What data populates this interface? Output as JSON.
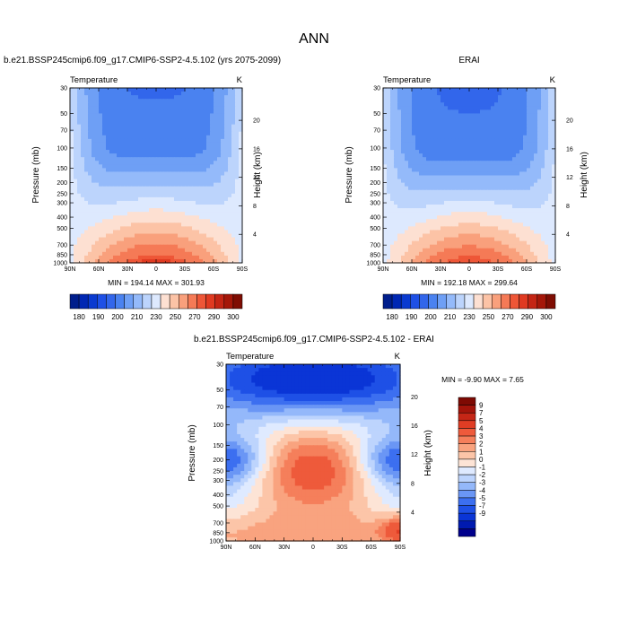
{
  "figure": {
    "title": "ANN"
  },
  "colors": {
    "model_and_obs_levels": [
      "#001e8c",
      "#0027b3",
      "#0a3ad0",
      "#1e50e6",
      "#3266eb",
      "#4a82f0",
      "#6e9ff5",
      "#94bafa",
      "#bcd4fc",
      "#dde9fe",
      "#fde0d2",
      "#fcc3a6",
      "#f9a07c",
      "#f57a56",
      "#ee5637",
      "#e03a21",
      "#c42514",
      "#a51709",
      "#7f0d03"
    ],
    "difference_levels": [
      "#00008c",
      "#001ab0",
      "#0a35d6",
      "#1e50e6",
      "#3c6ff0",
      "#6a96f5",
      "#94b8fa",
      "#bdd4fd",
      "#dfeaff",
      "#fde4d6",
      "#fcc5a8",
      "#f9a37f",
      "#f57f5b",
      "#ee5a3b",
      "#e03d24",
      "#c52616",
      "#a3140a",
      "#7e0a03"
    ]
  },
  "chart_data": [
    {
      "type": "heatmap",
      "id": "model",
      "subtitle": "b.e21.BSSP245cmip6.f09_g17.CMIP6-SSP2-4.5.102 (yrs 2075-2099)",
      "left_label": "Temperature",
      "right_label": "K",
      "xlabel": "",
      "ylabel": "Pressure (mb)",
      "y2label": "Height (km)",
      "x_ticks": [
        "90N",
        "60N",
        "30N",
        "0",
        "30S",
        "60S",
        "90S"
      ],
      "x_tick_values": [
        90,
        60,
        30,
        0,
        -30,
        -60,
        -90
      ],
      "y_ticks": [
        "30",
        "50",
        "70",
        "100",
        "150",
        "200",
        "250",
        "300",
        "400",
        "500",
        "700",
        "850",
        "1000"
      ],
      "y_tick_values": [
        30,
        50,
        70,
        100,
        150,
        200,
        250,
        300,
        400,
        500,
        700,
        850,
        1000
      ],
      "y2_ticks": [
        "20",
        "16",
        "12",
        "8",
        "4"
      ],
      "y2_tick_values": [
        20,
        16,
        12,
        8,
        4
      ],
      "ylim": [
        1000,
        30
      ],
      "stats_text": "MIN = 194.14   MAX = 301.93",
      "min": 194.14,
      "max": 301.93,
      "colorbar": {
        "levels": [
          175,
          180,
          185,
          190,
          200,
          210,
          220,
          230,
          240,
          250,
          260,
          270,
          280,
          290,
          295,
          300,
          305
        ],
        "labels": [
          "180",
          "190",
          "200",
          "210",
          "230",
          "250",
          "270",
          "290",
          "300"
        ]
      }
    },
    {
      "type": "heatmap",
      "id": "obs",
      "subtitle": "ERAI",
      "left_label": "Temperature",
      "right_label": "K",
      "ylabel": "Pressure (mb)",
      "y2label": "Height (km)",
      "x_ticks": [
        "90N",
        "60N",
        "30N",
        "0",
        "30S",
        "60S",
        "90S"
      ],
      "x_tick_values": [
        90,
        60,
        30,
        0,
        -30,
        -60,
        -90
      ],
      "y_ticks": [
        "30",
        "50",
        "70",
        "100",
        "150",
        "200",
        "250",
        "300",
        "400",
        "500",
        "700",
        "850",
        "1000"
      ],
      "y_tick_values": [
        30,
        50,
        70,
        100,
        150,
        200,
        250,
        300,
        400,
        500,
        700,
        850,
        1000
      ],
      "y2_ticks": [
        "20",
        "16",
        "12",
        "8",
        "4"
      ],
      "y2_tick_values": [
        20,
        16,
        12,
        8,
        4
      ],
      "ylim": [
        1000,
        30
      ],
      "stats_text": "MIN = 192.18   MAX = 299.64",
      "min": 192.18,
      "max": 299.64,
      "colorbar": {
        "levels": [
          175,
          180,
          185,
          190,
          200,
          210,
          220,
          230,
          240,
          250,
          260,
          270,
          280,
          290,
          295,
          300,
          305
        ],
        "labels": [
          "180",
          "190",
          "200",
          "210",
          "230",
          "250",
          "270",
          "290",
          "300"
        ]
      }
    },
    {
      "type": "heatmap",
      "id": "diff",
      "subtitle": "b.e21.BSSP245cmip6.f09_g17.CMIP6-SSP2-4.5.102 - ERAI",
      "left_label": "Temperature",
      "right_label": "K",
      "ylabel": "Pressure (mb)",
      "y2label": "Height (km)",
      "x_ticks": [
        "90N",
        "60N",
        "30N",
        "0",
        "30S",
        "60S",
        "90S"
      ],
      "x_tick_values": [
        90,
        60,
        30,
        0,
        -30,
        -60,
        -90
      ],
      "y_ticks": [
        "30",
        "50",
        "70",
        "100",
        "150",
        "200",
        "250",
        "300",
        "400",
        "500",
        "700",
        "850",
        "1000"
      ],
      "y_tick_values": [
        30,
        50,
        70,
        100,
        150,
        200,
        250,
        300,
        400,
        500,
        700,
        850,
        1000
      ],
      "y2_ticks": [
        "20",
        "16",
        "12",
        "8",
        "4"
      ],
      "y2_tick_values": [
        20,
        16,
        12,
        8,
        4
      ],
      "ylim": [
        1000,
        30
      ],
      "stats_text": "MIN =  -9.90   MAX =   7.65",
      "min": -9.9,
      "max": 7.65,
      "colorbar": {
        "levels": [
          -9,
          -7,
          -5,
          -4,
          -3,
          -2,
          -1,
          0,
          1,
          2,
          3,
          4,
          5,
          7,
          9
        ],
        "labels": [
          "9",
          "7",
          "5",
          "4",
          "3",
          "2",
          "1",
          "0",
          "-1",
          "-2",
          "-3",
          "-4",
          "-5",
          "-7",
          "-9"
        ]
      }
    }
  ]
}
